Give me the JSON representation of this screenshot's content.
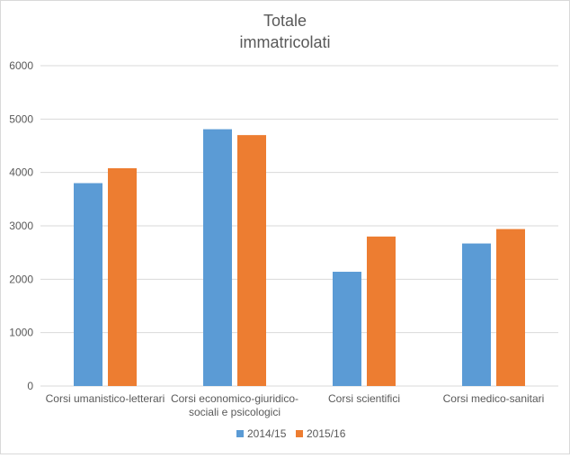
{
  "chart_data": {
    "type": "bar",
    "title_lines": [
      "Totale",
      "immatricolati"
    ],
    "categories": [
      [
        "Corsi umanistico-letterari"
      ],
      [
        "Corsi economico-giuridico-",
        "sociali e psicologici"
      ],
      [
        "Corsi scientifici"
      ],
      [
        "Corsi medico-sanitari"
      ]
    ],
    "series": [
      {
        "name": "2014/15",
        "values": [
          3800,
          4810,
          2140,
          2670
        ],
        "color": "#5b9bd5"
      },
      {
        "name": "2015/16",
        "values": [
          4080,
          4700,
          2800,
          2940
        ],
        "color": "#ed7d31"
      }
    ],
    "ylim": [
      0,
      6000
    ],
    "yticks": [
      "0",
      "1000",
      "2000",
      "3000",
      "4000",
      "5000",
      "6000"
    ],
    "grid": true,
    "legend_position": "bottom"
  }
}
